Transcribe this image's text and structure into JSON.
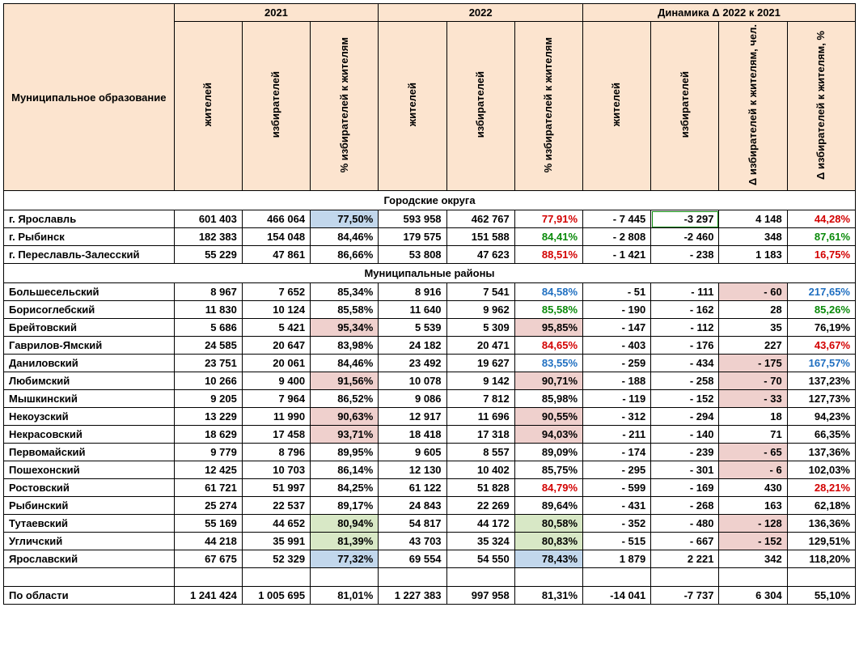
{
  "colors": {
    "header_bg": "#fce4cf",
    "hl_green": "#d8e8c6",
    "hl_blue": "#c2d7ec",
    "hl_pink": "#efd0cd",
    "txt_black": "#000000",
    "txt_red": "#d30000",
    "txt_blue": "#1f6fc1",
    "txt_green": "#0a8a0a"
  },
  "headers": {
    "name": "Муниципальное образование",
    "y2021": "2021",
    "y2022": "2022",
    "dyn": "Динамика Δ 2022 к 2021",
    "residents": "жителей",
    "voters": "избирателей",
    "pct": "% избирателей к жителям",
    "d_residents": "жителей",
    "d_voters": "избирателей",
    "d_pct_abs": "Δ избирателей к жителям, чел.",
    "d_pct_rel": "Δ избирателей к жителям, %"
  },
  "sections": [
    {
      "title": "Городские округа",
      "rows": [
        {
          "name": "г. Ярославль",
          "r21": "601 403",
          "v21": "466 064",
          "p21": "77,50%",
          "p21_bg": "hl_blue",
          "r22": "593 958",
          "v22": "462 767",
          "p22": "77,91%",
          "p22_color": "txt_red",
          "dr": "-  7 445",
          "dv": "-3 297",
          "dv_box": true,
          "dpa": "4 148",
          "dpr": "44,28%",
          "dpr_color": "txt_red"
        },
        {
          "name": "г. Рыбинск",
          "r21": "182 383",
          "v21": "154 048",
          "p21": "84,46%",
          "r22": "179 575",
          "v22": "151 588",
          "p22": "84,41%",
          "p22_color": "txt_green",
          "dr": "-  2 808",
          "dv": "-2 460",
          "dpa": "348",
          "dpr": "87,61%",
          "dpr_color": "txt_green"
        },
        {
          "name": "г. Переславль-Залесский",
          "r21": "55 229",
          "v21": "47 861",
          "p21": "86,66%",
          "r22": "53 808",
          "v22": "47 623",
          "p22": "88,51%",
          "p22_color": "txt_red",
          "dr": "-  1 421",
          "dv": "-   238",
          "dpa": "1 183",
          "dpr": "16,75%",
          "dpr_color": "txt_red"
        }
      ]
    },
    {
      "title": "Муниципальные районы",
      "rows": [
        {
          "name": "Большесельский",
          "r21": "8 967",
          "v21": "7 652",
          "p21": "85,34%",
          "r22": "8 916",
          "v22": "7 541",
          "p22": "84,58%",
          "p22_color": "txt_blue",
          "dr": "-     51",
          "dv": "-   111",
          "dpa": "-     60",
          "dpa_bg": "hl_pink",
          "dpr": "217,65%",
          "dpr_color": "txt_blue"
        },
        {
          "name": "Борисоглебский",
          "r21": "11 830",
          "v21": "10 124",
          "p21": "85,58%",
          "r22": "11 640",
          "v22": "9 962",
          "p22": "85,58%",
          "p22_color": "txt_green",
          "dr": "-   190",
          "dv": "-   162",
          "dpa": "28",
          "dpr": "85,26%",
          "dpr_color": "txt_green"
        },
        {
          "name": "Брейтовский",
          "r21": "5 686",
          "v21": "5 421",
          "p21": "95,34%",
          "p21_bg": "hl_pink",
          "r22": "5 539",
          "v22": "5 309",
          "p22": "95,85%",
          "p22_bg": "hl_pink",
          "dr": "-   147",
          "dv": "-   112",
          "dpa": "35",
          "dpr": "76,19%"
        },
        {
          "name": "Гаврилов-Ямский",
          "r21": "24 585",
          "v21": "20 647",
          "p21": "83,98%",
          "r22": "24 182",
          "v22": "20 471",
          "p22": "84,65%",
          "p22_color": "txt_red",
          "dr": "-   403",
          "dv": "-   176",
          "dpa": "227",
          "dpr": "43,67%",
          "dpr_color": "txt_red"
        },
        {
          "name": "Даниловский",
          "r21": "23 751",
          "v21": "20 061",
          "p21": "84,46%",
          "r22": "23 492",
          "v22": "19 627",
          "p22": "83,55%",
          "p22_color": "txt_blue",
          "dr": "-   259",
          "dv": "-   434",
          "dpa": "-   175",
          "dpa_bg": "hl_pink",
          "dpr": "167,57%",
          "dpr_color": "txt_blue"
        },
        {
          "name": "Любимский",
          "r21": "10 266",
          "v21": "9 400",
          "p21": "91,56%",
          "p21_bg": "hl_pink",
          "r22": "10 078",
          "v22": "9 142",
          "p22": "90,71%",
          "p22_bg": "hl_pink",
          "dr": "-   188",
          "dv": "-   258",
          "dpa": "-     70",
          "dpa_bg": "hl_pink",
          "dpr": "137,23%"
        },
        {
          "name": "Мышкинский",
          "r21": "9 205",
          "v21": "7 964",
          "p21": "86,52%",
          "r22": "9 086",
          "v22": "7 812",
          "p22": "85,98%",
          "dr": "-   119",
          "dv": "-   152",
          "dpa": "-     33",
          "dpa_bg": "hl_pink",
          "dpr": "127,73%"
        },
        {
          "name": "Некоузский",
          "r21": "13 229",
          "v21": "11 990",
          "p21": "90,63%",
          "p21_bg": "hl_pink",
          "r22": "12 917",
          "v22": "11 696",
          "p22": "90,55%",
          "p22_bg": "hl_pink",
          "dr": "-   312",
          "dv": "-   294",
          "dpa": "18",
          "dpr": "94,23%"
        },
        {
          "name": "Некрасовский",
          "r21": "18 629",
          "v21": "17 458",
          "p21": "93,71%",
          "p21_bg": "hl_pink",
          "r22": "18 418",
          "v22": "17 318",
          "p22": "94,03%",
          "p22_bg": "hl_pink",
          "dr": "-   211",
          "dv": "-   140",
          "dpa": "71",
          "dpr": "66,35%"
        },
        {
          "name": "Первомайский",
          "r21": "9 779",
          "v21": "8 796",
          "p21": "89,95%",
          "r22": "9 605",
          "v22": "8 557",
          "p22": "89,09%",
          "dr": "-   174",
          "dv": "-   239",
          "dpa": "-     65",
          "dpa_bg": "hl_pink",
          "dpr": "137,36%"
        },
        {
          "name": "Пошехонский",
          "r21": "12 425",
          "v21": "10 703",
          "p21": "86,14%",
          "r22": "12 130",
          "v22": "10 402",
          "p22": "85,75%",
          "dr": "-   295",
          "dv": "-   301",
          "dpa": "-       6",
          "dpa_bg": "hl_pink",
          "dpr": "102,03%"
        },
        {
          "name": "Ростовский",
          "r21": "61 721",
          "v21": "51 997",
          "p21": "84,25%",
          "r22": "61 122",
          "v22": "51 828",
          "p22": "84,79%",
          "p22_color": "txt_red",
          "dr": "-   599",
          "dv": "-   169",
          "dpa": "430",
          "dpr": "28,21%",
          "dpr_color": "txt_red"
        },
        {
          "name": "Рыбинский",
          "r21": "25 274",
          "v21": "22 537",
          "p21": "89,17%",
          "r22": "24 843",
          "v22": "22 269",
          "p22": "89,64%",
          "dr": "-   431",
          "dv": "-   268",
          "dpa": "163",
          "dpr": "62,18%"
        },
        {
          "name": "Тутаевский",
          "r21": "55 169",
          "v21": "44 652",
          "p21": "80,94%",
          "p21_bg": "hl_green",
          "r22": "54 817",
          "v22": "44 172",
          "p22": "80,58%",
          "p22_bg": "hl_green",
          "dr": "-   352",
          "dv": "-   480",
          "dpa": "-   128",
          "dpa_bg": "hl_pink",
          "dpr": "136,36%"
        },
        {
          "name": "Угличский",
          "r21": "44 218",
          "v21": "35 991",
          "p21": "81,39%",
          "p21_bg": "hl_green",
          "r22": "43 703",
          "v22": "35 324",
          "p22": "80,83%",
          "p22_bg": "hl_green",
          "dr": "-   515",
          "dv": "-   667",
          "dpa": "-   152",
          "dpa_bg": "hl_pink",
          "dpr": "129,51%"
        },
        {
          "name": "Ярославский",
          "r21": "67 675",
          "v21": "52 329",
          "p21": "77,32%",
          "p21_bg": "hl_blue",
          "r22": "69 554",
          "v22": "54 550",
          "p22": "78,43%",
          "p22_bg": "hl_blue",
          "dr": "1 879",
          "dv": "2 221",
          "dpa": "342",
          "dpr": "118,20%"
        }
      ]
    }
  ],
  "total": {
    "name": "По области",
    "r21": "1 241 424",
    "v21": "1 005 695",
    "p21": "81,01%",
    "r22": "1 227 383",
    "v22": "997 958",
    "p22": "81,31%",
    "dr": "-14 041",
    "dv": "-7 737",
    "dpa": "6 304",
    "dpr": "55,10%"
  }
}
